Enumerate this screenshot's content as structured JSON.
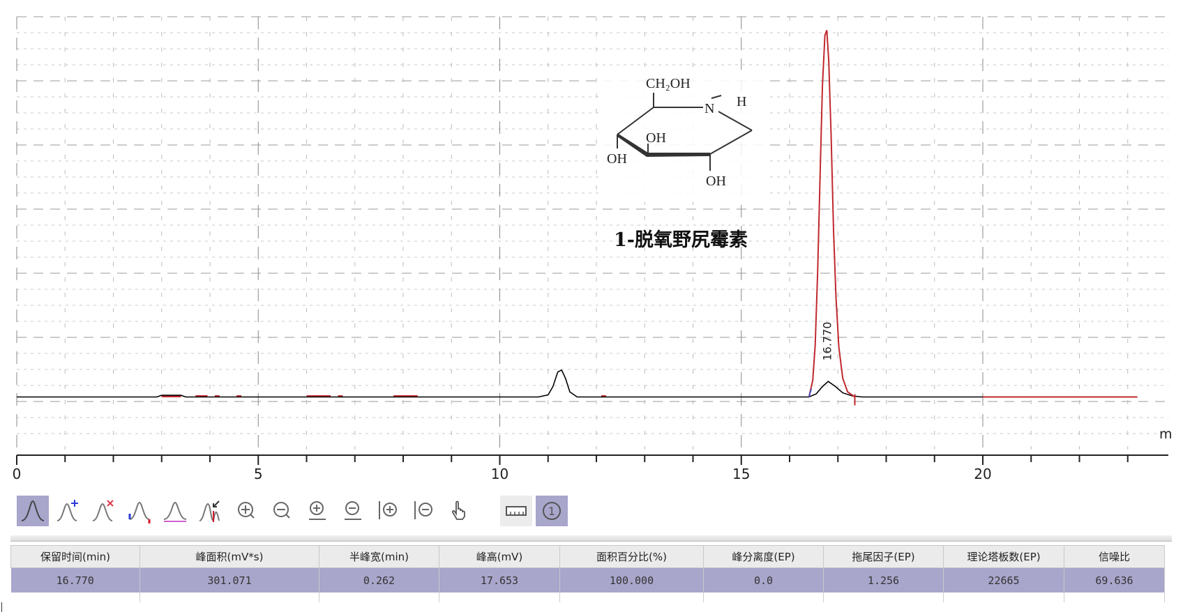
{
  "chart_data": {
    "type": "line",
    "title": "",
    "xlabel": "m",
    "ylabel": "",
    "xlim": [
      0,
      24
    ],
    "ylim": [
      -2.8,
      18.3
    ],
    "x_ticks": [
      0,
      5,
      10,
      15,
      20
    ],
    "grid": true,
    "peak_label": "16.770",
    "peak_label_x": 16.77,
    "series": [
      {
        "color": "#000000",
        "points": [
          [
            0,
            0
          ],
          [
            2.9,
            0
          ],
          [
            3.0,
            0.08
          ],
          [
            3.4,
            0.08
          ],
          [
            3.5,
            0
          ],
          [
            10.8,
            0
          ],
          [
            11.0,
            0.1
          ],
          [
            11.1,
            0.5
          ],
          [
            11.2,
            1.2
          ],
          [
            11.28,
            1.3
          ],
          [
            11.36,
            0.9
          ],
          [
            11.45,
            0.25
          ],
          [
            11.6,
            0
          ],
          [
            16.4,
            0
          ],
          [
            16.55,
            0.15
          ],
          [
            16.68,
            0.5
          ],
          [
            16.8,
            0.75
          ],
          [
            16.95,
            0.5
          ],
          [
            17.1,
            0.2
          ],
          [
            17.3,
            0.05
          ],
          [
            17.5,
            0
          ],
          [
            23.2,
            0
          ]
        ]
      },
      {
        "color": "#c0282d",
        "points": [
          [
            16.4,
            0
          ],
          [
            16.48,
            0.8
          ],
          [
            16.53,
            2.5
          ],
          [
            16.58,
            6
          ],
          [
            16.63,
            10.5
          ],
          [
            16.68,
            15
          ],
          [
            16.73,
            17.4
          ],
          [
            16.77,
            17.653
          ],
          [
            16.81,
            16.2
          ],
          [
            16.86,
            12.5
          ],
          [
            16.91,
            8
          ],
          [
            16.96,
            4.8
          ],
          [
            17.02,
            2.4
          ],
          [
            17.1,
            0.9
          ],
          [
            17.2,
            0.25
          ],
          [
            17.35,
            0
          ]
        ]
      },
      {
        "color": "#c0282d",
        "points": [
          [
            20,
            0
          ],
          [
            23.2,
            0
          ]
        ]
      }
    ],
    "baseline_segments_red": [
      [
        3.0,
        3.4
      ],
      [
        3.7,
        3.95
      ],
      [
        4.1,
        4.2
      ],
      [
        4.55,
        4.65
      ],
      [
        6.0,
        6.5
      ],
      [
        6.65,
        6.75
      ],
      [
        7.8,
        8.3
      ],
      [
        12.1,
        12.2
      ]
    ]
  },
  "structure": {
    "labels": {
      "ch2oh": "CH₂OH",
      "n": "N",
      "h": "H",
      "oh_upper": "OH",
      "oh_left": "OH",
      "oh_bottom": "OH"
    },
    "compound_name": "1-脱氧野尻霉素"
  },
  "toolbar": {
    "icons": [
      "peak-icon",
      "add-peak-icon",
      "delete-peak-icon",
      "split-peak-icon",
      "baseline-icon",
      "merge-peak-icon",
      "zoom-in-icon",
      "zoom-out-icon",
      "zoom-in-y-icon",
      "zoom-out-y-icon",
      "zoom-in-x-icon",
      "zoom-out-x-icon",
      "hand-pan-icon",
      "ruler-icon",
      "channel-1-icon"
    ],
    "channel": "1"
  },
  "results_table": {
    "headers": [
      "保留时间(min)",
      "峰面积(mV*s)",
      "半峰宽(min)",
      "峰高(mV)",
      "面积百分比(%)",
      "峰分离度(EP)",
      "拖尾因子(EP)",
      "理论塔板数(EP)",
      "信噪比"
    ],
    "rows": [
      [
        "16.770",
        "301.071",
        "0.262",
        "17.653",
        "100.000",
        "0.0",
        "1.256",
        "22665",
        "69.636"
      ]
    ]
  },
  "colors": {
    "selection": "#a9a6cc",
    "fit_trace": "#c0282d",
    "raw_trace": "#000000"
  }
}
